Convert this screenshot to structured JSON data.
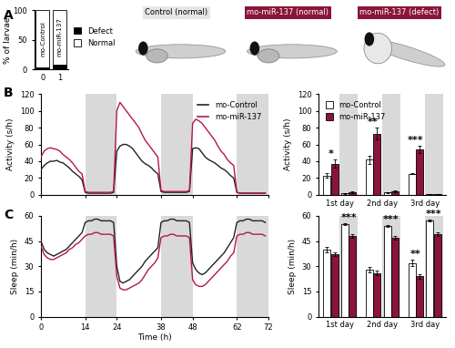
{
  "panel_labels": [
    "A",
    "B",
    "C"
  ],
  "images": [
    {
      "title": "Control (normal)"
    },
    {
      "title": "mo-miR-137 (normal)"
    },
    {
      "title": "mo-miR-137 (defect)"
    }
  ],
  "chart_data": [
    {
      "type": "bar",
      "stacked": true,
      "ylabel": "% of larvae",
      "categories": [
        "mo-Control",
        "mo-miR-137"
      ],
      "series": [
        {
          "name": "Defect",
          "color": "#000000",
          "values": [
            3,
            9
          ]
        },
        {
          "name": "Normal",
          "color": "#ffffff",
          "values": [
            97,
            91
          ]
        }
      ],
      "ylim": [
        0,
        100
      ],
      "yticks": [
        0,
        50,
        100
      ],
      "legend": "right",
      "tick_labels": "y"
    },
    {
      "type": "line",
      "ylabel": "Activity (s/h)",
      "x": [
        0,
        1,
        2,
        3,
        4,
        5,
        6,
        7,
        8,
        9,
        10,
        11,
        12,
        13,
        14,
        15,
        16,
        17,
        18,
        19,
        20,
        21,
        22,
        23,
        24,
        25,
        26,
        27,
        28,
        29,
        30,
        31,
        32,
        33,
        34,
        35,
        36,
        37,
        38,
        39,
        40,
        41,
        42,
        43,
        44,
        45,
        46,
        47,
        48,
        49,
        50,
        51,
        52,
        53,
        54,
        55,
        56,
        57,
        58,
        59,
        60,
        61,
        62,
        63,
        64,
        65,
        66,
        67,
        68,
        69,
        70,
        71
      ],
      "shaded_x": [
        [
          14,
          24
        ],
        [
          38,
          48
        ],
        [
          62,
          72
        ]
      ],
      "xlim": [
        0,
        72
      ],
      "xticks": [
        0,
        14,
        24,
        38,
        48,
        62,
        72
      ],
      "ylim": [
        0,
        120
      ],
      "yticks": [
        0,
        20,
        40,
        60,
        80,
        100,
        120
      ],
      "tick_labels": "y",
      "legend": "upper right",
      "series": [
        {
          "name": "mo-Control",
          "color": "#222222",
          "values": [
            30,
            35,
            38,
            40,
            40,
            41,
            39,
            38,
            35,
            32,
            28,
            25,
            22,
            18,
            3,
            2,
            2,
            2,
            2,
            2,
            2,
            2,
            2,
            3,
            52,
            58,
            60,
            60,
            58,
            55,
            50,
            45,
            40,
            37,
            35,
            32,
            28,
            25,
            4,
            3,
            3,
            3,
            3,
            3,
            3,
            3,
            3,
            4,
            55,
            56,
            55,
            50,
            45,
            42,
            40,
            38,
            35,
            32,
            30,
            27,
            23,
            20,
            3,
            2,
            2,
            2,
            2,
            2,
            2,
            2,
            2,
            2
          ]
        },
        {
          "name": "mo-miR-137",
          "color": "#b5164b",
          "values": [
            45,
            52,
            55,
            56,
            55,
            54,
            52,
            48,
            45,
            42,
            38,
            33,
            28,
            25,
            4,
            3,
            3,
            3,
            3,
            3,
            3,
            3,
            3,
            4,
            100,
            110,
            105,
            100,
            95,
            90,
            85,
            80,
            72,
            65,
            60,
            55,
            50,
            45,
            5,
            4,
            4,
            4,
            4,
            4,
            4,
            4,
            4,
            5,
            85,
            90,
            88,
            85,
            80,
            75,
            70,
            65,
            58,
            52,
            48,
            42,
            38,
            35,
            3,
            2,
            2,
            2,
            2,
            2,
            2,
            2,
            2,
            2
          ]
        }
      ]
    },
    {
      "type": "bar",
      "ylabel": "Activity (s/h)",
      "categories": [
        "1st day",
        "2nd day",
        "3rd day"
      ],
      "series": [
        {
          "name": "mo-Control",
          "color": "#ffffff",
          "values": [
            [
              23,
              2
            ],
            [
              42,
              3
            ],
            [
              25,
              1
            ]
          ],
          "errors": [
            [
              3,
              0.5
            ],
            [
              5,
              0.5
            ],
            [
              0.5,
              0.2
            ]
          ]
        },
        {
          "name": "mo-miR-137",
          "color": "#8b1538",
          "values": [
            [
              37,
              3
            ],
            [
              73,
              4
            ],
            [
              54,
              1
            ]
          ],
          "errors": [
            [
              5,
              1
            ],
            [
              7,
              1
            ],
            [
              4,
              0.5
            ]
          ]
        }
      ],
      "annotations": [
        {
          "text": "*",
          "category": 0,
          "period": 0
        },
        {
          "text": "**",
          "category": 1,
          "period": 0
        },
        {
          "text": "***",
          "category": 2,
          "period": 0
        }
      ],
      "ylim": [
        0,
        120
      ],
      "yticks": [
        0,
        20,
        40,
        60,
        80,
        100,
        120
      ],
      "legend": "upper left"
    },
    {
      "type": "line",
      "ylabel": "Sleep (min/h)",
      "xlabel": "Time (h)",
      "x": [
        0,
        1,
        2,
        3,
        4,
        5,
        6,
        7,
        8,
        9,
        10,
        11,
        12,
        13,
        14,
        15,
        16,
        17,
        18,
        19,
        20,
        21,
        22,
        23,
        24,
        25,
        26,
        27,
        28,
        29,
        30,
        31,
        32,
        33,
        34,
        35,
        36,
        37,
        38,
        39,
        40,
        41,
        42,
        43,
        44,
        45,
        46,
        47,
        48,
        49,
        50,
        51,
        52,
        53,
        54,
        55,
        56,
        57,
        58,
        59,
        60,
        61,
        62,
        63,
        64,
        65,
        66,
        67,
        68,
        69,
        70,
        71
      ],
      "shaded_x": [
        [
          14,
          24
        ],
        [
          38,
          48
        ],
        [
          62,
          72
        ]
      ],
      "xlim": [
        0,
        72
      ],
      "xticks": [
        0,
        14,
        24,
        38,
        48,
        62,
        72
      ],
      "ylim": [
        0,
        60
      ],
      "yticks": [
        0,
        15,
        30,
        45,
        60
      ],
      "series": [
        {
          "name": "mo-Control",
          "color": "#222222",
          "values": [
            45,
            40,
            38,
            37,
            36,
            37,
            38,
            39,
            40,
            42,
            44,
            46,
            48,
            50,
            56,
            57,
            57,
            58,
            58,
            57,
            57,
            57,
            57,
            56,
            30,
            21,
            20,
            21,
            22,
            24,
            26,
            28,
            30,
            33,
            35,
            37,
            39,
            41,
            56,
            57,
            57,
            58,
            58,
            57,
            57,
            57,
            57,
            56,
            32,
            28,
            26,
            25,
            26,
            28,
            30,
            32,
            34,
            36,
            38,
            41,
            44,
            47,
            56,
            57,
            57,
            58,
            58,
            57,
            57,
            57,
            57,
            56
          ]
        },
        {
          "name": "mo-miR-137",
          "color": "#b5164b",
          "values": [
            42,
            37,
            35,
            34,
            34,
            35,
            36,
            37,
            38,
            40,
            41,
            43,
            44,
            46,
            48,
            49,
            49,
            50,
            50,
            49,
            49,
            49,
            49,
            48,
            24,
            17,
            16,
            16,
            17,
            18,
            19,
            20,
            22,
            25,
            28,
            30,
            32,
            35,
            47,
            48,
            48,
            49,
            49,
            48,
            48,
            48,
            48,
            47,
            22,
            19,
            18,
            18,
            19,
            21,
            23,
            25,
            27,
            29,
            31,
            33,
            36,
            38,
            48,
            49,
            49,
            50,
            50,
            49,
            49,
            49,
            49,
            48
          ]
        }
      ]
    },
    {
      "type": "bar",
      "ylabel": "Sleep (min/h)",
      "categories": [
        "1st day",
        "2nd day",
        "3rd day"
      ],
      "series": [
        {
          "name": "mo-Control",
          "color": "#ffffff",
          "values": [
            [
              40,
              55
            ],
            [
              28,
              54
            ],
            [
              32,
              57
            ]
          ],
          "errors": [
            [
              1.5,
              0.5
            ],
            [
              1.5,
              0.5
            ],
            [
              2,
              0.5
            ]
          ]
        },
        {
          "name": "mo-miR-137",
          "color": "#8b1538",
          "values": [
            [
              37,
              48
            ],
            [
              26,
              47
            ],
            [
              24,
              49
            ]
          ],
          "errors": [
            [
              1,
              1
            ],
            [
              1.5,
              1
            ],
            [
              1.5,
              1
            ]
          ]
        }
      ],
      "annotations": [
        {
          "text": "***",
          "category": 0,
          "period": 1
        },
        {
          "text": "***",
          "category": 1,
          "period": 1
        },
        {
          "text": "**",
          "category": 2,
          "period": 0
        },
        {
          "text": "***",
          "category": 2,
          "period": 1
        }
      ],
      "ylim": [
        0,
        60
      ],
      "yticks": [
        0,
        15,
        30,
        45,
        60
      ]
    }
  ]
}
